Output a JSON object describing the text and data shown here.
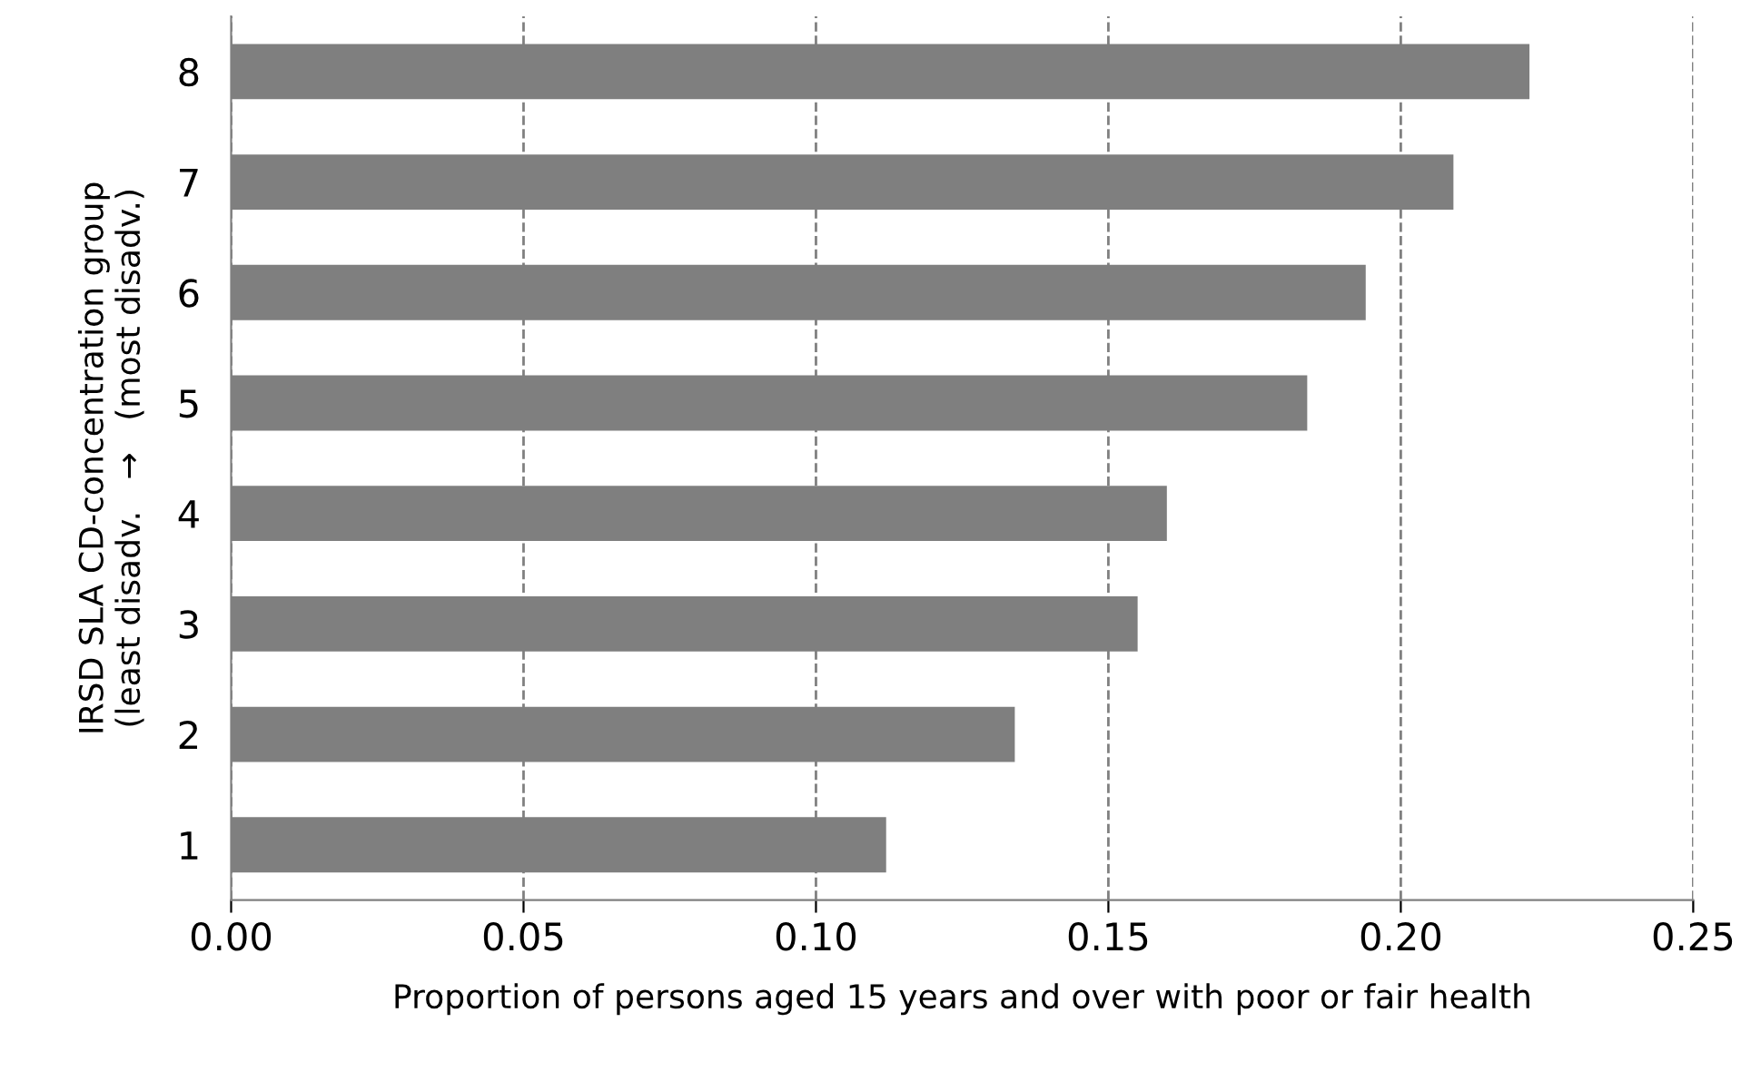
{
  "chart_data": {
    "type": "bar",
    "orientation": "horizontal",
    "categories": [
      "8",
      "7",
      "6",
      "5",
      "4",
      "3",
      "2",
      "1"
    ],
    "values": [
      0.222,
      0.209,
      0.194,
      0.184,
      0.16,
      0.155,
      0.134,
      0.112
    ],
    "color": "#7f7f7f",
    "xlabel": "Proportion of persons aged 15 years and over with poor or fair health",
    "ylabel": "IRSD SLA CD-concentration group\n(least disadv.   →   (most disadv.)",
    "xlim": [
      0,
      0.25
    ],
    "xticks": [
      {
        "value": 0,
        "label": "0.00"
      },
      {
        "value": 0.05,
        "label": "0.05"
      },
      {
        "value": 0.1,
        "label": "0.10"
      },
      {
        "value": 0.15,
        "label": "0.15"
      },
      {
        "value": 0.2,
        "label": "0.20"
      },
      {
        "value": 0.25,
        "label": "0.25"
      }
    ],
    "grid": "x",
    "line_style": "dashed"
  }
}
